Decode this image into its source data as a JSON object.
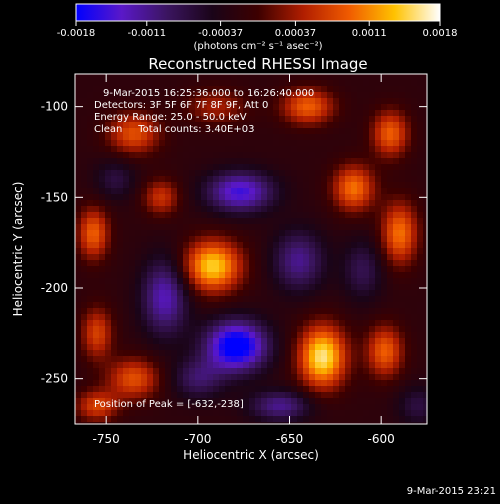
{
  "colorbar": {
    "ticks": [
      -0.0018,
      -0.0011,
      -0.00037,
      0.00037,
      0.0011,
      0.0018
    ],
    "tick_labels": [
      "-0.0018",
      "-0.0011",
      "-0.00037",
      "0.00037",
      "0.0011",
      "0.0018"
    ],
    "units_label": "(photons cm⁻² s⁻¹ asec⁻²)",
    "colors": [
      "#0000ff",
      "#5a18c8",
      "#3b1560",
      "#1a0418",
      "#3d0000",
      "#b11e00",
      "#f05b00",
      "#ffc200",
      "#ffffff"
    ]
  },
  "title": "Reconstructed RHESSI Image",
  "annotations": {
    "time_range": "9-Mar-2015 16:25:36.000 to 16:26:40.000",
    "detectors": "Detectors: 3F 5F 6F 7F 8F 9F, Att 0",
    "energy": "Energy Range: 25.0 - 50.0 keV",
    "method": "Clean     Total counts: 3.40E+03",
    "peak": "Position of Peak = [-632,-238]"
  },
  "footer_timestamp": "9-Mar-2015 23:21",
  "chart_data": {
    "type": "heatmap",
    "title": "Reconstructed RHESSI Image",
    "xlabel": "Heliocentric X (arcsec)",
    "ylabel": "Heliocentric Y (arcsec)",
    "xlim": [
      -767,
      -575
    ],
    "ylim": [
      -275,
      -82
    ],
    "xticks": [
      -750,
      -700,
      -650,
      -600
    ],
    "yticks": [
      -100,
      -150,
      -200,
      -250
    ],
    "value_range": [
      -0.0018,
      0.0018
    ],
    "peak_position": [
      -632,
      -238
    ],
    "sources": [
      {
        "x": -632,
        "y": -238,
        "value": 0.0018,
        "sx": 9,
        "sy": 12
      },
      {
        "x": -692,
        "y": -188,
        "value": 0.00165,
        "sx": 11,
        "sy": 10
      },
      {
        "x": -679,
        "y": -232,
        "value": -0.0018,
        "sx": 12,
        "sy": 10
      },
      {
        "x": -677,
        "y": -147,
        "value": -0.0013,
        "sx": 13,
        "sy": 8
      },
      {
        "x": -718,
        "y": -205,
        "value": -0.0011,
        "sx": 9,
        "sy": 15
      },
      {
        "x": -645,
        "y": -185,
        "value": -0.0009,
        "sx": 10,
        "sy": 12
      },
      {
        "x": -655,
        "y": -265,
        "value": -0.0009,
        "sx": 12,
        "sy": 6
      },
      {
        "x": -610,
        "y": -190,
        "value": -0.0006,
        "sx": 8,
        "sy": 12
      },
      {
        "x": -700,
        "y": -250,
        "value": -0.0007,
        "sx": 10,
        "sy": 8
      },
      {
        "x": -757,
        "y": -170,
        "value": 0.0011,
        "sx": 6,
        "sy": 10
      },
      {
        "x": -755,
        "y": -225,
        "value": 0.0009,
        "sx": 6,
        "sy": 10
      },
      {
        "x": -735,
        "y": -115,
        "value": 0.001,
        "sx": 10,
        "sy": 8
      },
      {
        "x": -640,
        "y": -100,
        "value": 0.0011,
        "sx": 10,
        "sy": 7
      },
      {
        "x": -615,
        "y": -145,
        "value": 0.0012,
        "sx": 8,
        "sy": 9
      },
      {
        "x": -595,
        "y": -115,
        "value": 0.0011,
        "sx": 7,
        "sy": 9
      },
      {
        "x": -590,
        "y": -170,
        "value": 0.0012,
        "sx": 7,
        "sy": 12
      },
      {
        "x": -598,
        "y": -235,
        "value": 0.0011,
        "sx": 7,
        "sy": 10
      },
      {
        "x": -735,
        "y": -250,
        "value": 0.001,
        "sx": 10,
        "sy": 8
      },
      {
        "x": -755,
        "y": -265,
        "value": 0.0009,
        "sx": 8,
        "sy": 6
      },
      {
        "x": -745,
        "y": -140,
        "value": -0.0005,
        "sx": 8,
        "sy": 8
      },
      {
        "x": -720,
        "y": -150,
        "value": 0.0008,
        "sx": 7,
        "sy": 7
      },
      {
        "x": -580,
        "y": -265,
        "value": -0.0005,
        "sx": 8,
        "sy": 8
      },
      {
        "x": -690,
        "y": -100,
        "value": 0.0006,
        "sx": 12,
        "sy": 7
      }
    ]
  }
}
